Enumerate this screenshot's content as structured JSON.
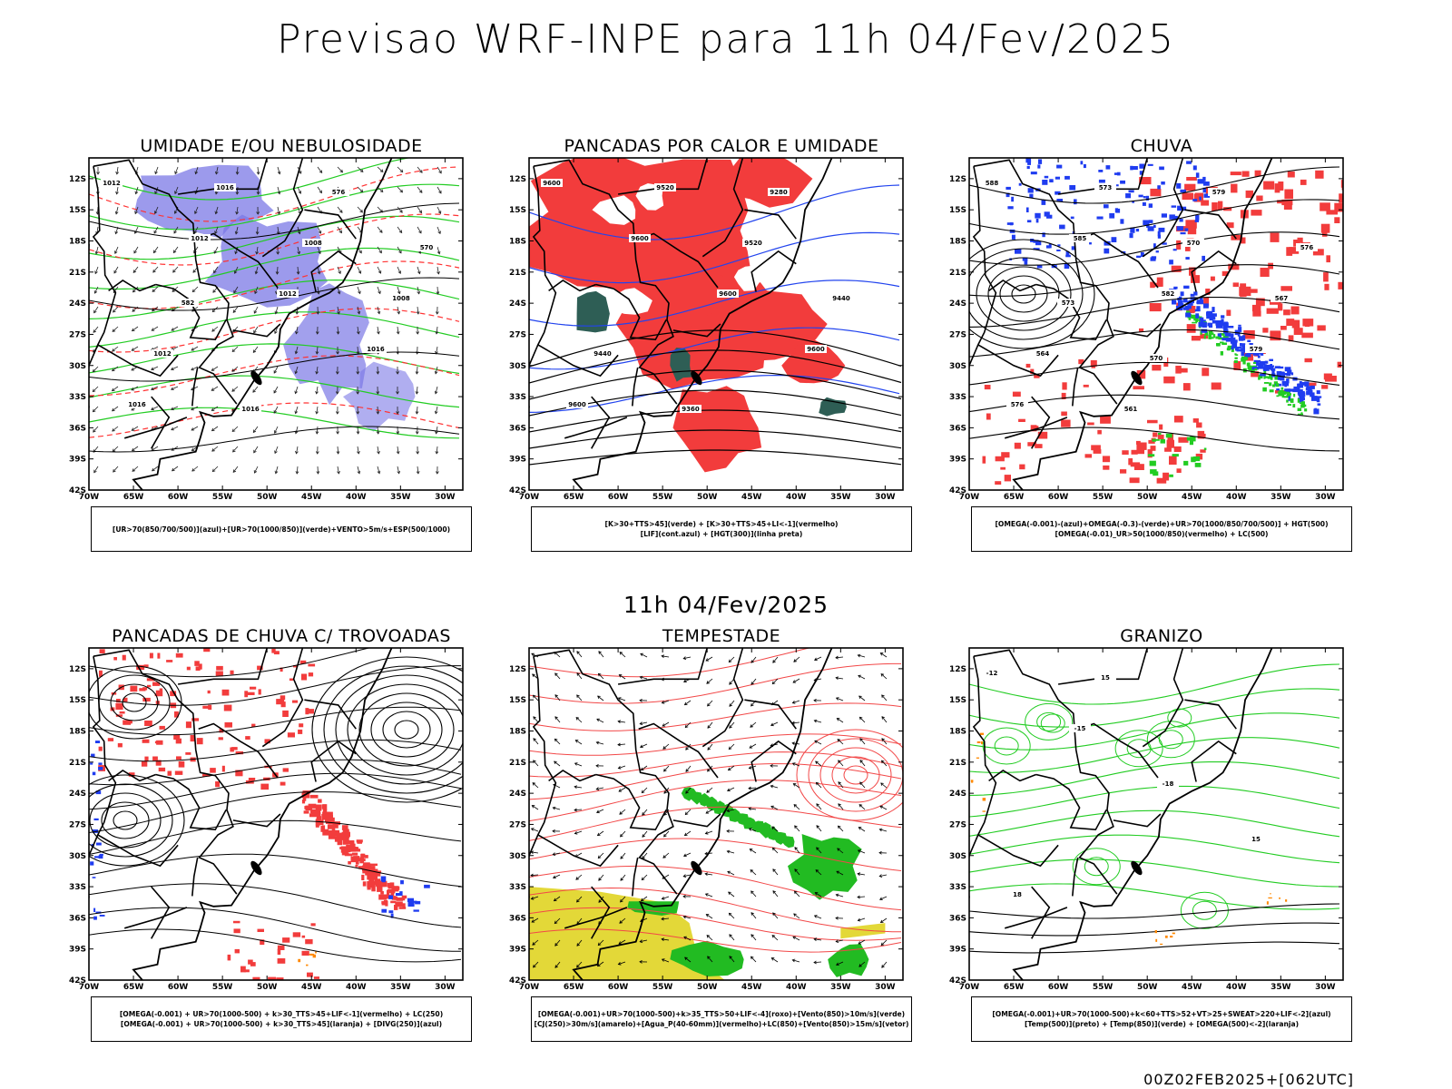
{
  "title": "Previsao WRF-INPE  para 11h 04/Fev/2025",
  "mid_title": "11h 04/Fev/2025",
  "footer": "00Z02FEB2025+[062UTC]",
  "lat_ticks": [
    "12S",
    "15S",
    "18S",
    "21S",
    "24S",
    "27S",
    "30S",
    "33S",
    "36S",
    "39S",
    "42S"
  ],
  "lon_ticks": [
    "70W",
    "65W",
    "60W",
    "55W",
    "50W",
    "45W",
    "40W",
    "35W",
    "30W"
  ],
  "panels": [
    {
      "title": "UMIDADE E/OU NEBULOSIDADE",
      "caption": [
        "[UR>70(850/700/500)](azul)+[UR>70(1000/850)](verde)+VENTO>5m/s+ESP(500/1000)"
      ],
      "colors": {
        "blue": "#7b78e6",
        "green": "#22cc22",
        "red": "#ff3333"
      },
      "contour_labels": [
        "1012",
        "1012",
        "1012",
        "1016",
        "1016",
        "1016",
        "1008",
        "1008",
        "1012",
        "1016",
        "576",
        "570",
        "582"
      ]
    },
    {
      "title": "PANCADAS POR CALOR E UMIDADE",
      "caption": [
        "[K>30+TTS>45](verde)  +  [K>30+TTS>45+LI<-1](vermelho)",
        "[LIF](cont.azul)  +  [HGT(300)](linha preta)"
      ],
      "colors": {
        "red": "#f23c3c",
        "dark_green": "#2e5e55",
        "blue": "#2244ee"
      },
      "contour_labels": [
        "9600",
        "9600",
        "9600",
        "9600",
        "9600",
        "9520",
        "9520",
        "9440",
        "9440",
        "9360",
        "9280"
      ]
    },
    {
      "title": "CHUVA",
      "caption": [
        "[OMEGA(-0.001)-(azul)+OMEGA(-0.3)-(verde)+UR>70(1000/850/700/500)]  +  HGT(500)",
        "[OMEGA(-0.01)_UR>50(1000/850)(vermelho)  +  LC(500)"
      ],
      "colors": {
        "red": "#f23c3c",
        "blue": "#1f3cf0",
        "green": "#22cc22"
      },
      "contour_labels": [
        "588",
        "585",
        "582",
        "579",
        "576",
        "573",
        "570",
        "567",
        "564",
        "561",
        "579",
        "576",
        "573",
        "570"
      ]
    },
    {
      "title": "PANCADAS DE CHUVA C/ TROVOADAS",
      "caption": [
        "[OMEGA(-0.001)  +  UR>70(1000-500)  +  k>30_TTS>45+LIF<-1](vermelho)  +  LC(250)",
        "[OMEGA(-0.001)  +  UR>70(1000-500)  +  k>30_TTS>45](laranja)  +  [DIVG(250)](azul)"
      ],
      "colors": {
        "red": "#f23c3c",
        "blue": "#1f3cf0",
        "orange": "#ff8800"
      },
      "contour_labels": []
    },
    {
      "title": "TEMPESTADE",
      "caption": [
        "[OMEGA(-0.001)+UR>70(1000-500)+k>35_TTS>50+LIF<-4](roxo)+[Vento(850)>10m/s](verde)",
        "[CJ(250)>30m/s](amarelo)+[Agua_P(40-60mm)](vermelho)+LC(850)+[Vento(850)>15m/s](vetor)"
      ],
      "colors": {
        "yellow": "#e3d838",
        "green": "#22bb22",
        "red": "#f24848"
      },
      "contour_labels": []
    },
    {
      "title": "GRANIZO",
      "caption": [
        "[OMEGA(-0.001)+UR>70(1000-500)+k<60+TTS>52+VT>25+SWEAT>220+LIF<-2](azul)",
        "[Temp(500)](preto)  +  [Temp(850)](verde)  +  [OMEGA(500)<-2](laranja)"
      ],
      "colors": {
        "green": "#22cc22",
        "orange": "#ff8800",
        "black": "#000000"
      },
      "contour_labels": [
        "-12",
        "-15",
        "-18",
        "15",
        "18",
        "15"
      ]
    }
  ]
}
